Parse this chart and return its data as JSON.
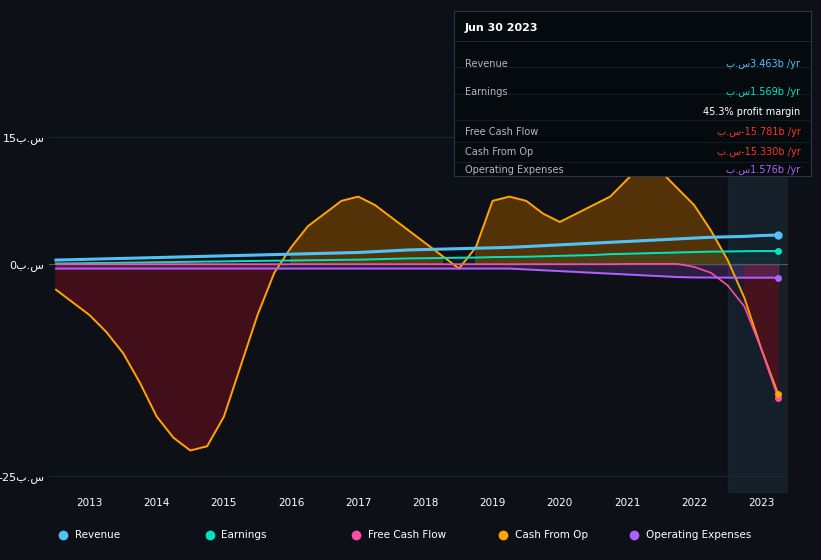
{
  "background_color": "#0d1117",
  "plot_bg_color": "#0d1117",
  "info_box": {
    "date": "Jun 30 2023",
    "revenue_val": "3.463",
    "earnings_val": "1.569",
    "profit_margin": "45.3%",
    "fcf_val": "-15.781",
    "cashfromop_val": "-15.330",
    "opex_val": "1.576"
  },
  "ylim": [
    -27,
    18
  ],
  "series": {
    "years": [
      2012.5,
      2012.75,
      2013.0,
      2013.25,
      2013.5,
      2013.75,
      2014.0,
      2014.25,
      2014.5,
      2014.75,
      2015.0,
      2015.25,
      2015.5,
      2015.75,
      2016.0,
      2016.25,
      2016.5,
      2016.75,
      2017.0,
      2017.25,
      2017.5,
      2017.75,
      2018.0,
      2018.25,
      2018.5,
      2018.75,
      2019.0,
      2019.25,
      2019.5,
      2019.75,
      2020.0,
      2020.25,
      2020.5,
      2020.75,
      2021.0,
      2021.25,
      2021.5,
      2021.75,
      2022.0,
      2022.25,
      2022.5,
      2022.75,
      2023.0,
      2023.25
    ],
    "revenue": [
      0.5,
      0.55,
      0.6,
      0.65,
      0.7,
      0.75,
      0.8,
      0.85,
      0.9,
      0.95,
      1.0,
      1.05,
      1.1,
      1.15,
      1.2,
      1.25,
      1.3,
      1.35,
      1.4,
      1.5,
      1.6,
      1.7,
      1.75,
      1.8,
      1.85,
      1.9,
      1.95,
      2.0,
      2.1,
      2.2,
      2.3,
      2.4,
      2.5,
      2.6,
      2.7,
      2.8,
      2.9,
      3.0,
      3.1,
      3.2,
      3.25,
      3.3,
      3.4,
      3.463
    ],
    "earnings": [
      0.1,
      0.12,
      0.15,
      0.17,
      0.2,
      0.22,
      0.25,
      0.27,
      0.3,
      0.33,
      0.35,
      0.38,
      0.4,
      0.43,
      0.45,
      0.48,
      0.5,
      0.53,
      0.55,
      0.6,
      0.65,
      0.7,
      0.72,
      0.75,
      0.78,
      0.8,
      0.85,
      0.88,
      0.9,
      0.95,
      1.0,
      1.05,
      1.1,
      1.2,
      1.25,
      1.3,
      1.35,
      1.4,
      1.45,
      1.5,
      1.52,
      1.55,
      1.57,
      1.569
    ],
    "free_cash_flow": [
      0.02,
      0.02,
      0.02,
      0.02,
      0.02,
      0.02,
      0.02,
      0.02,
      0.02,
      0.02,
      0.02,
      0.02,
      0.02,
      0.02,
      0.02,
      0.02,
      0.02,
      0.02,
      0.02,
      0.02,
      0.02,
      0.02,
      0.02,
      0.02,
      0.02,
      0.02,
      0.02,
      0.02,
      0.02,
      0.02,
      0.02,
      0.02,
      0.02,
      0.02,
      0.05,
      0.05,
      0.05,
      0.05,
      -0.3,
      -1.0,
      -2.5,
      -5.0,
      -10.0,
      -15.781
    ],
    "cash_from_op": [
      -3.0,
      -4.5,
      -6.0,
      -8.0,
      -10.5,
      -14.0,
      -18.0,
      -20.5,
      -22.0,
      -21.5,
      -18.0,
      -12.0,
      -6.0,
      -1.0,
      2.0,
      4.5,
      6.0,
      7.5,
      8.0,
      7.0,
      5.5,
      4.0,
      2.5,
      1.0,
      -0.5,
      2.0,
      7.5,
      8.0,
      7.5,
      6.0,
      5.0,
      6.0,
      7.0,
      8.0,
      10.0,
      12.0,
      11.0,
      9.0,
      7.0,
      4.0,
      0.5,
      -4.0,
      -10.0,
      -15.33
    ],
    "operating_expenses": [
      -0.5,
      -0.5,
      -0.5,
      -0.5,
      -0.5,
      -0.5,
      -0.5,
      -0.5,
      -0.5,
      -0.5,
      -0.5,
      -0.5,
      -0.5,
      -0.5,
      -0.5,
      -0.5,
      -0.5,
      -0.5,
      -0.5,
      -0.5,
      -0.5,
      -0.5,
      -0.5,
      -0.5,
      -0.5,
      -0.5,
      -0.5,
      -0.5,
      -0.6,
      -0.7,
      -0.8,
      -0.9,
      -1.0,
      -1.1,
      -1.2,
      -1.3,
      -1.4,
      -1.5,
      -1.55,
      -1.56,
      -1.57,
      -1.575,
      -1.576,
      -1.576
    ]
  },
  "colors": {
    "revenue": "#4fc3f7",
    "earnings": "#00e5c0",
    "free_cash_flow": "#ff4da6",
    "cash_from_op": "#ffa500",
    "operating_expenses": "#b060ff",
    "grid_line": "#1e2b3a",
    "zero_line": "#555a60"
  },
  "legend_items": [
    "Revenue",
    "Earnings",
    "Free Cash Flow",
    "Cash From Op",
    "Operating Expenses"
  ],
  "legend_colors": [
    "#4fc3f7",
    "#00e5c0",
    "#ff4da6",
    "#ffa500",
    "#b060ff"
  ]
}
